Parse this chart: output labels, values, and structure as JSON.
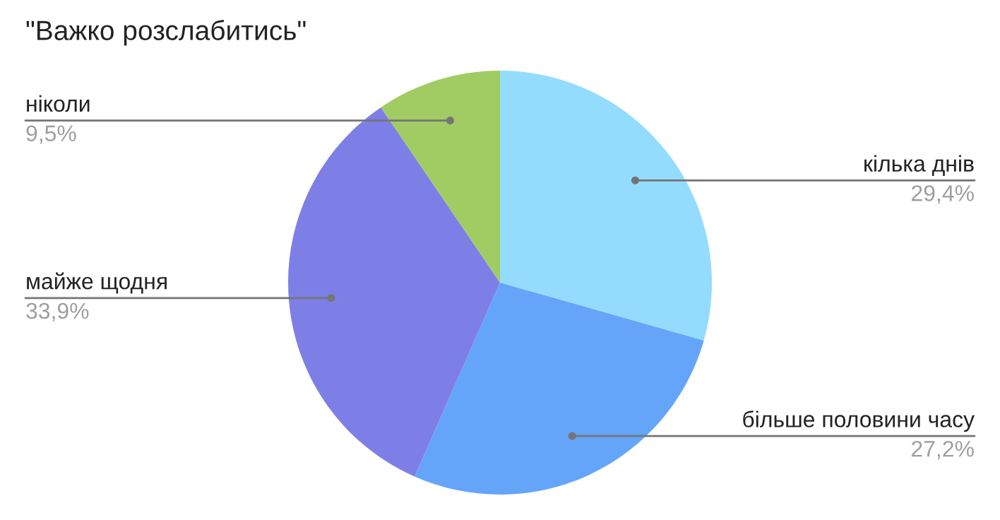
{
  "chart_data": {
    "type": "pie",
    "title": "\"Важко розслабитись\"",
    "categories": [
      "кілька днів",
      "більше половини часу",
      "майже щодня",
      "ніколи"
    ],
    "values": [
      29.4,
      27.2,
      33.9,
      9.5
    ],
    "value_labels": [
      "29,4%",
      "27,2%",
      "33,9%",
      "9,5%"
    ],
    "colors": [
      "#93dcfe",
      "#64a5fa",
      "#7e7fe6",
      "#a1cc63"
    ],
    "legend": false
  }
}
